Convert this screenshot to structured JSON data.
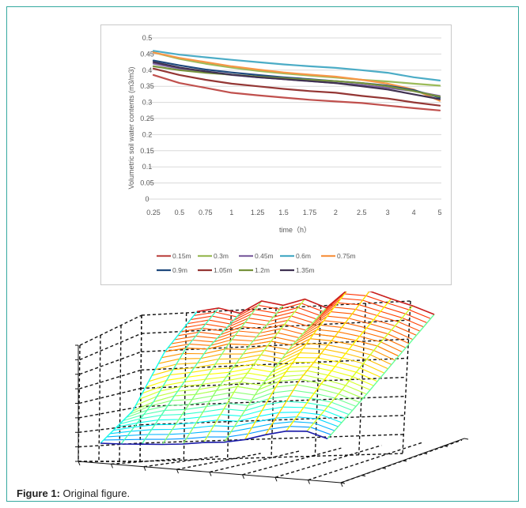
{
  "caption": {
    "label": "Figure 1:",
    "text": "Original figure."
  },
  "chart_data": {
    "type": "line",
    "xlabel": "time（h）",
    "ylabel": "Volumetric soil water contents (m3/m3)",
    "categories": [
      "0.25",
      "0.5",
      "0.75",
      "1",
      "1.25",
      "1.5",
      "1.75",
      "2",
      "2.5",
      "3",
      "4",
      "5"
    ],
    "y_ticks": [
      "0",
      "0.05",
      "0.1",
      "0.15",
      "0.2",
      "0.25",
      "0.3",
      "0.35",
      "0.4",
      "0.45",
      "0.5"
    ],
    "ylim": [
      0,
      0.5
    ],
    "grid": true,
    "legend_position": "bottom",
    "series": [
      {
        "name": "0.15m",
        "color": "#c0504d",
        "values": [
          0.385,
          0.36,
          0.345,
          0.33,
          0.322,
          0.315,
          0.308,
          0.303,
          0.298,
          0.29,
          0.282,
          0.275
        ]
      },
      {
        "name": "0.3m",
        "color": "#9bbb59",
        "values": [
          0.455,
          0.435,
          0.42,
          0.408,
          0.398,
          0.39,
          0.383,
          0.377,
          0.37,
          0.365,
          0.358,
          0.352
        ]
      },
      {
        "name": "0.45m",
        "color": "#8064a2",
        "values": [
          0.42,
          0.405,
          0.395,
          0.385,
          0.378,
          0.372,
          0.366,
          0.36,
          0.354,
          0.345,
          0.335,
          0.32
        ]
      },
      {
        "name": "0.6m",
        "color": "#4bacc6",
        "values": [
          0.46,
          0.448,
          0.44,
          0.432,
          0.425,
          0.418,
          0.412,
          0.407,
          0.4,
          0.392,
          0.378,
          0.368
        ]
      },
      {
        "name": "0.75m",
        "color": "#f79646",
        "values": [
          0.455,
          0.438,
          0.425,
          0.412,
          0.402,
          0.393,
          0.386,
          0.38,
          0.37,
          0.358,
          0.34,
          0.305
        ]
      },
      {
        "name": "0.9m",
        "color": "#1f497d",
        "values": [
          0.43,
          0.415,
          0.402,
          0.393,
          0.385,
          0.378,
          0.372,
          0.366,
          0.36,
          0.352,
          0.338,
          0.315
        ]
      },
      {
        "name": "1.05m",
        "color": "#943634",
        "values": [
          0.405,
          0.385,
          0.37,
          0.358,
          0.35,
          0.342,
          0.335,
          0.33,
          0.32,
          0.312,
          0.3,
          0.29
        ]
      },
      {
        "name": "1.2m",
        "color": "#76923c",
        "values": [
          0.412,
          0.4,
          0.392,
          0.386,
          0.38,
          0.375,
          0.37,
          0.366,
          0.36,
          0.35,
          0.335,
          0.318
        ]
      },
      {
        "name": "1.35m",
        "color": "#3f3151",
        "values": [
          0.425,
          0.408,
          0.396,
          0.386,
          0.378,
          0.372,
          0.366,
          0.36,
          0.35,
          0.34,
          0.325,
          0.31
        ]
      }
    ]
  },
  "surface_plot": {
    "type": "surface3d",
    "cols": 12,
    "rows": 4,
    "heights": [
      [
        0.86,
        0.88,
        0.8,
        0.92,
        0.85,
        0.9,
        0.78,
        0.97,
        0.93,
        0.82,
        0.72,
        0.6
      ],
      [
        0.7,
        0.74,
        0.72,
        0.78,
        0.76,
        0.8,
        0.74,
        0.88,
        0.84,
        0.78,
        0.7,
        0.56
      ],
      [
        0.2,
        0.35,
        0.45,
        0.48,
        0.55,
        0.62,
        0.58,
        0.72,
        0.76,
        0.7,
        0.62,
        0.5
      ],
      [
        0.0,
        0.02,
        0.05,
        0.08,
        0.12,
        0.18,
        0.22,
        0.3,
        0.42,
        0.52,
        0.55,
        0.45
      ]
    ]
  }
}
